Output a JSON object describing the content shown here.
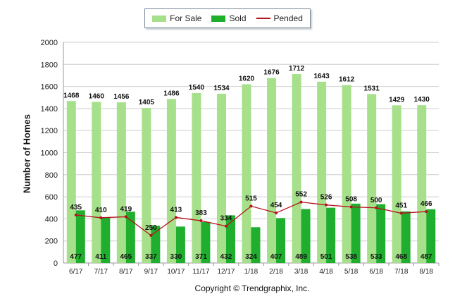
{
  "chart_data": {
    "type": "bar",
    "categories": [
      "6/17",
      "7/17",
      "8/17",
      "9/17",
      "10/17",
      "11/17",
      "12/17",
      "1/18",
      "2/18",
      "3/18",
      "4/18",
      "5/18",
      "6/18",
      "7/18",
      "8/18"
    ],
    "series": [
      {
        "name": "For Sale",
        "type": "bar",
        "color": "#a6e08a",
        "values": [
          1468,
          1460,
          1456,
          1405,
          1486,
          1540,
          1534,
          1620,
          1676,
          1712,
          1643,
          1612,
          1531,
          1429,
          1430
        ]
      },
      {
        "name": "Sold",
        "type": "bar",
        "color": "#1fae2e",
        "values": [
          477,
          411,
          465,
          337,
          330,
          371,
          432,
          324,
          407,
          489,
          501,
          538,
          533,
          468,
          487
        ]
      },
      {
        "name": "Pended",
        "type": "line",
        "color": "#b5121b",
        "values": [
          435,
          410,
          419,
          250,
          413,
          383,
          334,
          515,
          454,
          552,
          526,
          508,
          500,
          451,
          466
        ]
      }
    ],
    "xlabel": "",
    "ylabel": "Number of Homes",
    "ylim": [
      0,
      2000
    ],
    "yticks": [
      0,
      200,
      400,
      600,
      800,
      1000,
      1200,
      1400,
      1600,
      1800,
      2000
    ],
    "grid": true,
    "legend": "top-center"
  },
  "copyright": "Copyright © Trendgraphix, Inc."
}
